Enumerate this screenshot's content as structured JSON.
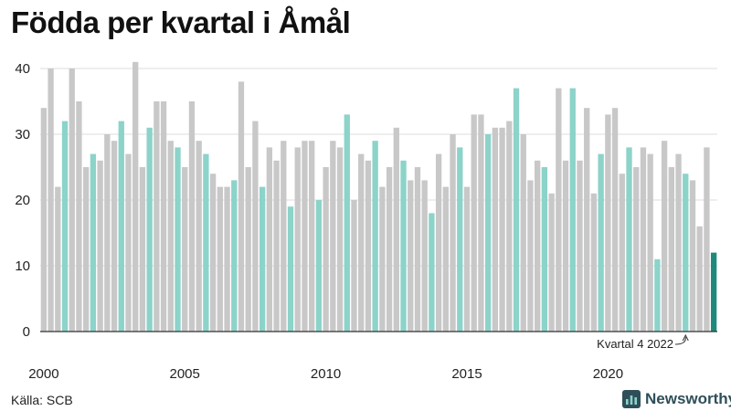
{
  "title": "Födda per kvartal i Åmål",
  "source": "Källa: SCB",
  "brand": {
    "name": "Newsworthy",
    "icon": "newsworthy-logo-icon",
    "color": "#2f4f58"
  },
  "colors": {
    "default": "#c8c8c8",
    "q4": "#8cd3c9",
    "latest": "#1e8a7c",
    "grid": "#dddddd",
    "axis": "#333333"
  },
  "chart_data": {
    "type": "bar",
    "title": "Födda per kvartal i Åmål",
    "xlabel": "",
    "ylabel": "",
    "ylim": [
      0,
      40
    ],
    "yticks": [
      0,
      10,
      20,
      30,
      40
    ],
    "grid": true,
    "xticks": [
      {
        "year": 2000,
        "label": "2000"
      },
      {
        "year": 2005,
        "label": "2005"
      },
      {
        "year": 2010,
        "label": "2010"
      },
      {
        "year": 2015,
        "label": "2015"
      },
      {
        "year": 2020,
        "label": "2020"
      }
    ],
    "start_year": 2000,
    "highlight": "Kvartal 4 markerat",
    "values": [
      34,
      40,
      22,
      32,
      40,
      35,
      25,
      27,
      26,
      30,
      29,
      32,
      27,
      41,
      25,
      31,
      35,
      35,
      29,
      28,
      25,
      35,
      29,
      27,
      24,
      22,
      22,
      23,
      38,
      25,
      32,
      22,
      28,
      26,
      29,
      19,
      28,
      29,
      29,
      20,
      25,
      29,
      28,
      33,
      20,
      27,
      26,
      29,
      22,
      25,
      31,
      26,
      23,
      25,
      23,
      18,
      27,
      22,
      30,
      28,
      22,
      33,
      33,
      30,
      31,
      31,
      32,
      37,
      30,
      23,
      26,
      25,
      21,
      37,
      26,
      37,
      26,
      34,
      21,
      27,
      33,
      34,
      24,
      28,
      25,
      28,
      27,
      11,
      29,
      25,
      27,
      24,
      23,
      16,
      28,
      12
    ],
    "annotation": {
      "text": "Kvartal 4 2022",
      "index": 91
    }
  }
}
